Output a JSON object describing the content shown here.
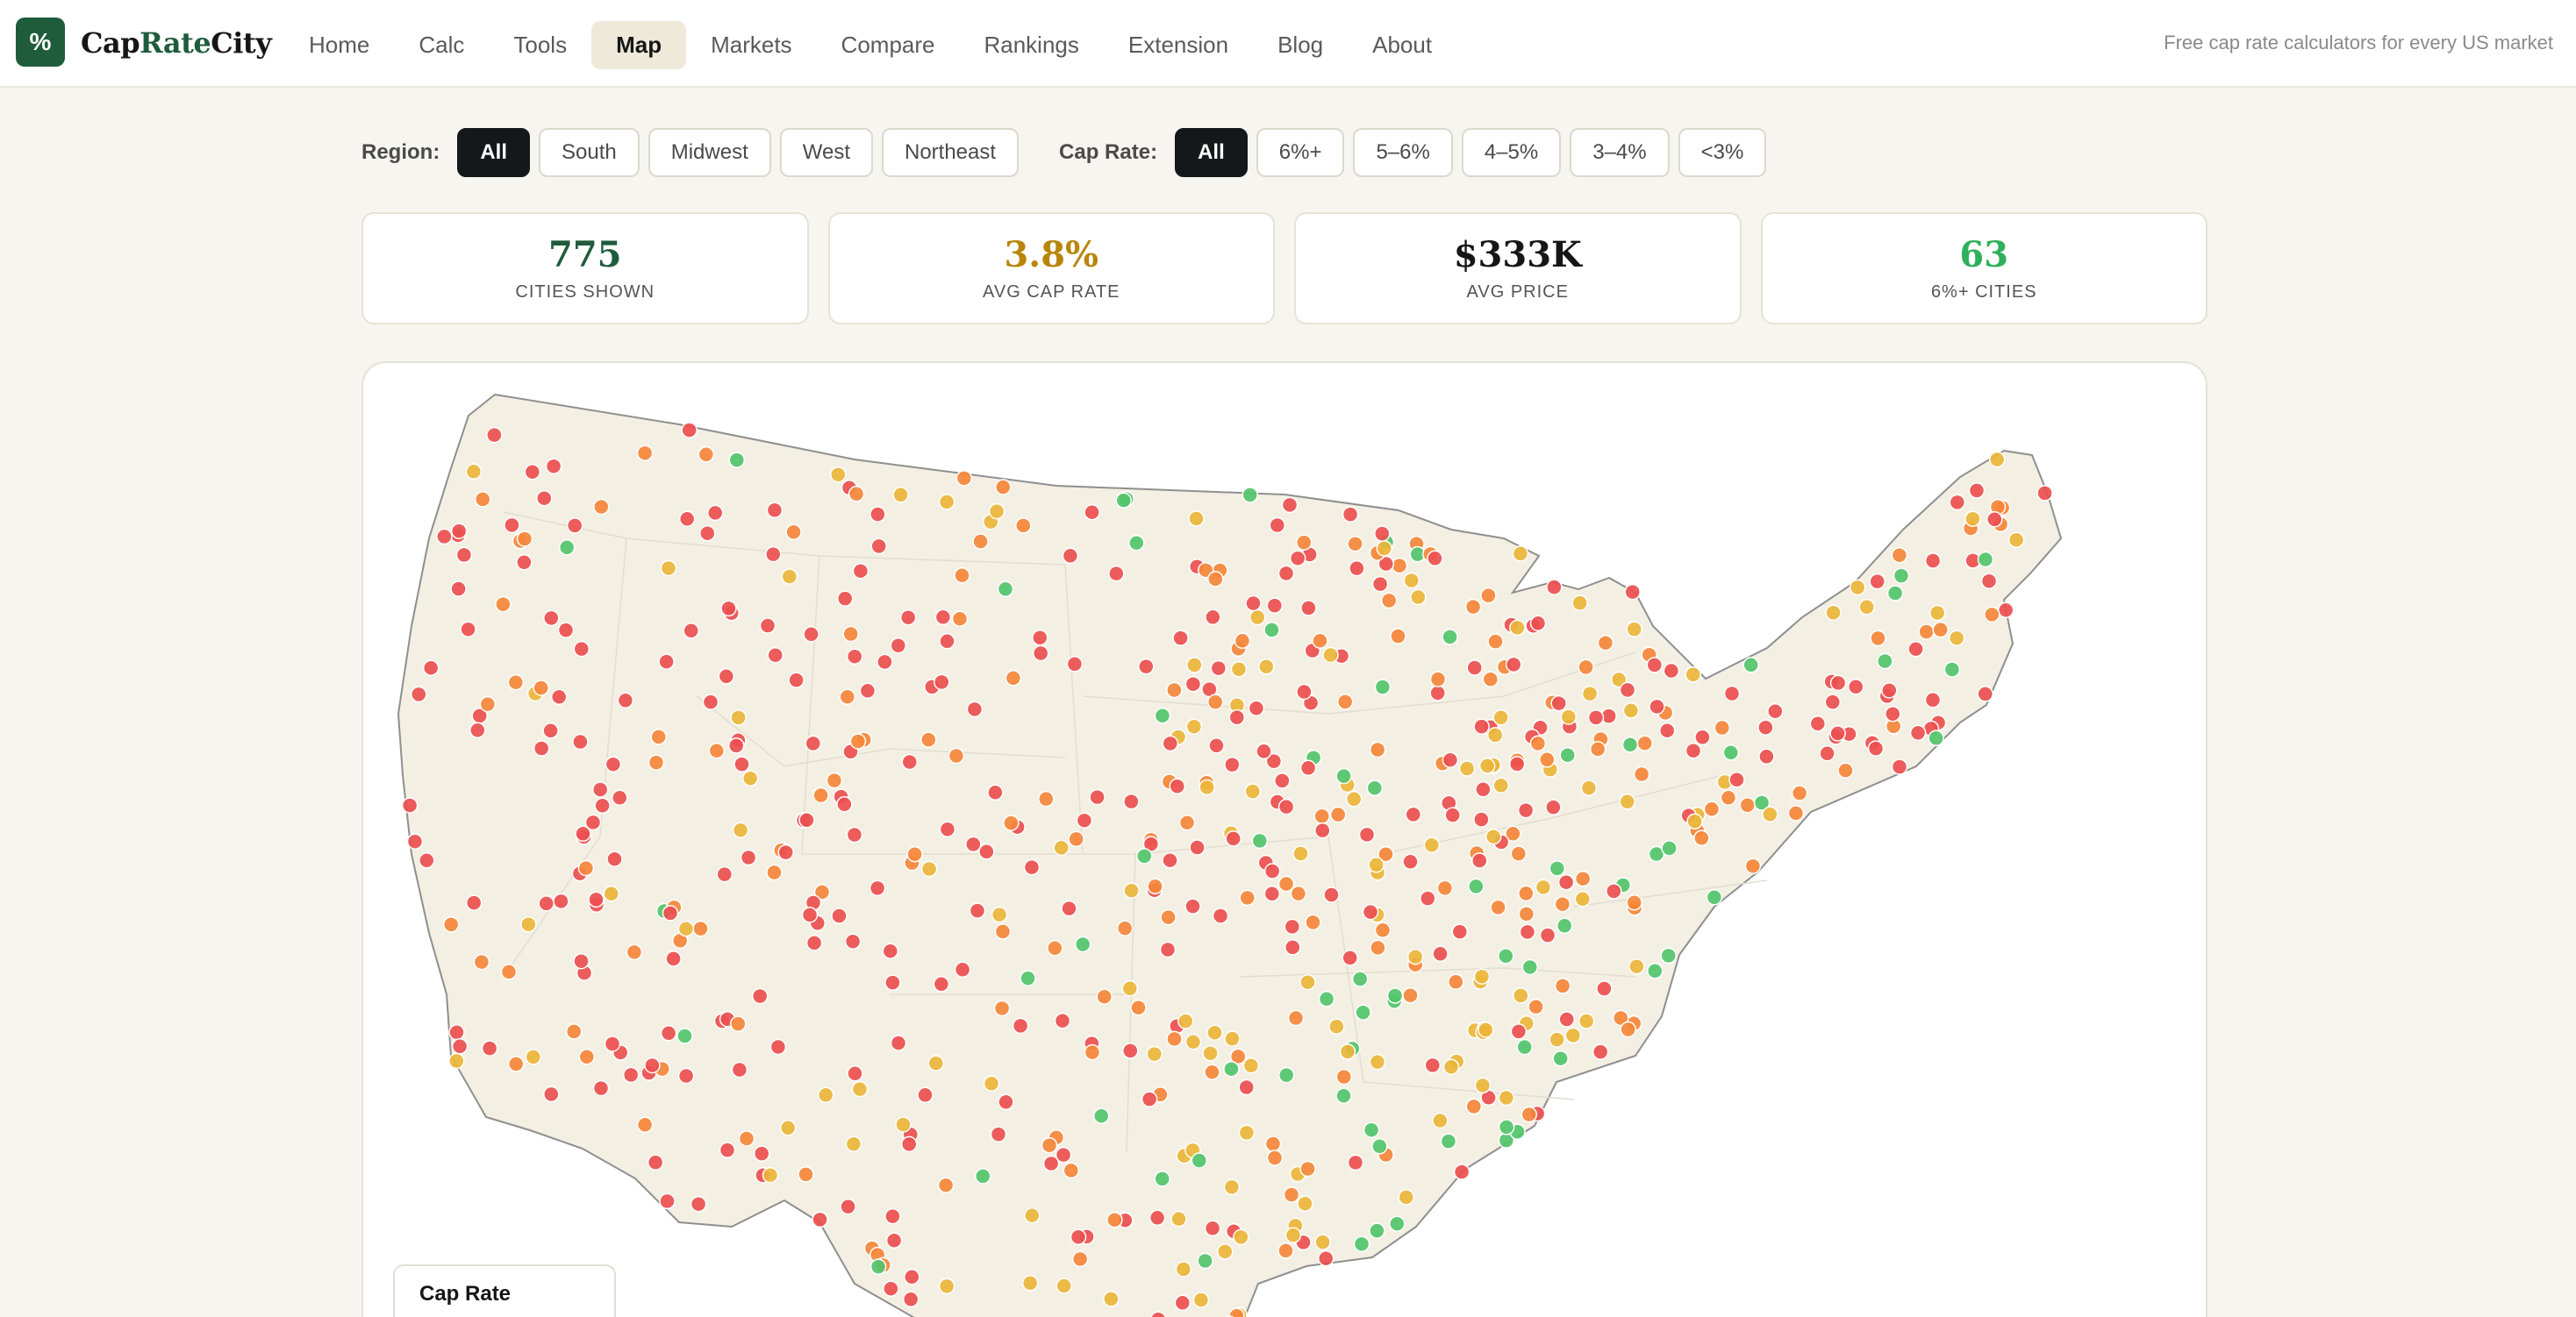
{
  "header": {
    "logo_glyph": "%",
    "brand_part1": "Cap",
    "brand_part2": "Rate",
    "brand_part3": "City",
    "nav": [
      {
        "label": "Home",
        "active": false
      },
      {
        "label": "Calc",
        "active": false
      },
      {
        "label": "Tools",
        "active": false
      },
      {
        "label": "Map",
        "active": true
      },
      {
        "label": "Markets",
        "active": false
      },
      {
        "label": "Compare",
        "active": false
      },
      {
        "label": "Rankings",
        "active": false
      },
      {
        "label": "Extension",
        "active": false
      },
      {
        "label": "Blog",
        "active": false
      },
      {
        "label": "About",
        "active": false
      }
    ],
    "tagline": "Free cap rate calculators for every US market"
  },
  "filters": {
    "region_label": "Region:",
    "region_options": [
      "All",
      "South",
      "Midwest",
      "West",
      "Northeast"
    ],
    "region_selected": "All",
    "cap_label": "Cap Rate:",
    "cap_options": [
      "All",
      "6%+",
      "5–6%",
      "4–5%",
      "3–4%",
      "<3%"
    ],
    "cap_selected": "All"
  },
  "stats": [
    {
      "value": "775",
      "label": "CITIES SHOWN",
      "color": "#1f5c3c"
    },
    {
      "value": "3.8%",
      "label": "AVG CAP RATE",
      "color": "#b8860b"
    },
    {
      "value": "$333K",
      "label": "AVG PRICE",
      "color": "#161616"
    },
    {
      "value": "63",
      "label": "6%+ CITIES",
      "color": "#2fb05a"
    }
  ],
  "map": {
    "legend_title": "Cap Rate",
    "land_color": "#f3efe3",
    "border_color": "#8f8f8f",
    "state_line_color": "#e2ddcf",
    "dot_colors": {
      "red": "#ec4f4f",
      "orange": "#f5873a",
      "yellow": "#ebb53a",
      "green": "#53c46b"
    }
  }
}
